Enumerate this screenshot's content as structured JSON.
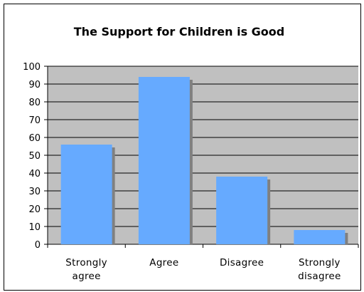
{
  "chart_data": {
    "type": "bar",
    "title": "The Support for Children is Good",
    "categories": [
      [
        "Strongly",
        "agree"
      ],
      [
        "Agree"
      ],
      [
        "Disagree"
      ],
      [
        "Strongly",
        "disagree"
      ]
    ],
    "values": [
      56,
      94,
      38,
      8
    ],
    "ylim": [
      0,
      100
    ],
    "yticks": [
      0,
      10,
      20,
      30,
      40,
      50,
      60,
      70,
      80,
      90,
      100
    ],
    "grid": true,
    "legend": "none",
    "colors": {
      "bar": "#66aaff",
      "bar_shadow": "#808080",
      "plot_bg": "#c0c0c0",
      "grid": "#000000"
    }
  }
}
